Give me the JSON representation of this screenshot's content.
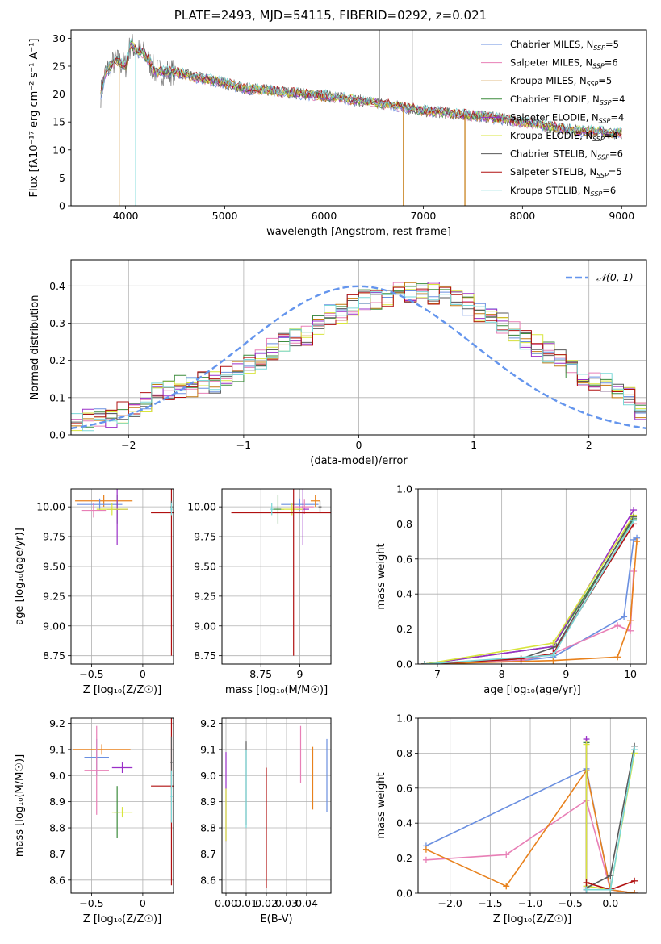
{
  "title": "PLATE=2493, MJD=54115, FIBERID=0292, z=0.021",
  "colors": {
    "chabrier_miles": "#6a8fe0",
    "salpeter_miles": "#e87fb6",
    "kroupa_miles": "#c47a10",
    "chabrier_elodie": "#3c8c3c",
    "salpeter_elodie": "#9a2fc8",
    "kroupa_elodie": "#d8e53c",
    "chabrier_stelib": "#5a5a5a",
    "salpeter_stelib": "#b01010",
    "kroupa_stelib": "#7ad8d8",
    "orange": "#e8811c",
    "gaussian": "#6495ed"
  },
  "chart_data": [
    {
      "id": "spectrum",
      "type": "line",
      "xlabel": "wavelength [Angstrom, rest frame]",
      "ylabel": "Flux [fλ10⁻¹⁷ erg cm⁻² s⁻¹ A⁻¹]",
      "xlim": [
        3450,
        9250
      ],
      "ylim": [
        0,
        31.5
      ],
      "xticks": [
        4000,
        5000,
        6000,
        7000,
        8000,
        9000
      ],
      "yticks": [
        0,
        5,
        10,
        15,
        20,
        25,
        30
      ],
      "legend_position": "top-right",
      "legend": [
        {
          "label": "Chabrier MILES, N",
          "sub": "SSP",
          "suffix": "=5",
          "color_key": "chabrier_miles"
        },
        {
          "label": "Salpeter MILES, N",
          "sub": "SSP",
          "suffix": "=6",
          "color_key": "salpeter_miles"
        },
        {
          "label": "Kroupa MILES, N",
          "sub": "SSP",
          "suffix": "=5",
          "color_key": "kroupa_miles"
        },
        {
          "label": "Chabrier ELODIE, N",
          "sub": "SSP",
          "suffix": "=4",
          "color_key": "chabrier_elodie"
        },
        {
          "label": "Salpeter ELODIE, N",
          "sub": "SSP",
          "suffix": "=4",
          "color_key": "salpeter_elodie"
        },
        {
          "label": "Kroupa ELODIE, N",
          "sub": "SSP",
          "suffix": "=4",
          "color_key": "kroupa_elodie"
        },
        {
          "label": "Chabrier STELIB, N",
          "sub": "SSP",
          "suffix": "=6",
          "color_key": "chabrier_stelib"
        },
        {
          "label": "Salpeter STELIB, N",
          "sub": "SSP",
          "suffix": "=5",
          "color_key": "salpeter_stelib"
        },
        {
          "label": "Kroupa STELIB, N",
          "sub": "SSP",
          "suffix": "=6",
          "color_key": "kroupa_stelib"
        }
      ],
      "continuum_x": [
        3750,
        3800,
        3900,
        4000,
        4050,
        4100,
        4200,
        4300,
        4400,
        4500,
        4700,
        5000,
        5200,
        5500,
        5800,
        6100,
        6300,
        6500,
        6700,
        7000,
        7300,
        7600,
        8000,
        8500,
        9000
      ],
      "continuum_y": [
        20,
        24,
        26,
        25,
        29,
        28,
        27,
        24,
        24,
        24,
        23,
        22,
        21,
        20.5,
        20,
        19.5,
        19,
        18.5,
        18,
        17,
        16.5,
        16,
        15,
        13.5,
        13
      ],
      "dips": [
        {
          "x": 3935,
          "y": 0,
          "color_key": "kroupa_miles"
        },
        {
          "x": 4102,
          "y": 0,
          "color_key": "kroupa_stelib"
        },
        {
          "x": 6800,
          "y": 0,
          "color_key": "kroupa_miles"
        },
        {
          "x": 7420,
          "y": 0,
          "color_key": "kroupa_miles"
        }
      ],
      "spikes": [
        {
          "x": 6560,
          "y": 31.5
        },
        {
          "x": 6890,
          "y": 31.5
        }
      ]
    },
    {
      "id": "residuals",
      "type": "area",
      "xlabel": "(data-model)/error",
      "ylabel": "Normed distribution",
      "xlim": [
        -2.5,
        2.5
      ],
      "ylim": [
        0,
        0.47
      ],
      "xticks": [
        -2,
        -1,
        0,
        1,
        2
      ],
      "yticks": [
        0.0,
        0.1,
        0.2,
        0.3,
        0.4
      ],
      "grid": true,
      "legend_position": "top-right",
      "legend_label": "𝒩(0, 1)",
      "bin_width": 0.1,
      "bin_start": -2.5,
      "reference_hist": [
        0.04,
        0.04,
        0.05,
        0.05,
        0.06,
        0.07,
        0.09,
        0.11,
        0.12,
        0.13,
        0.13,
        0.14,
        0.14,
        0.16,
        0.17,
        0.19,
        0.2,
        0.23,
        0.25,
        0.26,
        0.27,
        0.29,
        0.32,
        0.33,
        0.35,
        0.36,
        0.36,
        0.37,
        0.38,
        0.38,
        0.38,
        0.38,
        0.37,
        0.36,
        0.35,
        0.33,
        0.32,
        0.3,
        0.28,
        0.26,
        0.24,
        0.22,
        0.2,
        0.18,
        0.16,
        0.15,
        0.14,
        0.12,
        0.1,
        0.07
      ],
      "series_count": 9
    },
    {
      "id": "age_vs_Z",
      "type": "scatter",
      "xlabel": "Z [log₁₀(Z/Z☉)]",
      "ylabel": "age  [log₁₀(age/yr)]",
      "xlim": [
        -0.7,
        0.3
      ],
      "ylim": [
        8.68,
        10.15
      ],
      "xticks": [
        -0.5,
        0.0
      ],
      "yticks": [
        8.75,
        9.0,
        9.25,
        9.5,
        9.75,
        10.0
      ],
      "grid": true,
      "points": [
        {
          "x": -0.38,
          "y": 10.05,
          "xerr": 0.28,
          "yerr": 0.05,
          "color_key": "orange"
        },
        {
          "x": -0.42,
          "y": 10.02,
          "xerr": 0.22,
          "yerr": 0.05,
          "color_key": "chabrier_miles"
        },
        {
          "x": -0.48,
          "y": 9.97,
          "xerr": 0.12,
          "yerr": 0.06,
          "color_key": "salpeter_miles"
        },
        {
          "x": -0.25,
          "y": 9.98,
          "xerr": 0.03,
          "yerr": 0.12,
          "color_key": "chabrier_elodie"
        },
        {
          "x": -0.25,
          "y": 9.98,
          "xerr": 0.1,
          "yerr": 0.3,
          "color_key": "salpeter_elodie"
        },
        {
          "x": -0.3,
          "y": 9.98,
          "xerr": 0.15,
          "yerr": 0.05,
          "color_key": "kroupa_elodie"
        },
        {
          "x": 0.28,
          "y": 9.95,
          "xerr": 0.2,
          "yerr": 1.2,
          "color_key": "salpeter_stelib"
        },
        {
          "x": 0.28,
          "y": 10.0,
          "xerr": 0.01,
          "yerr": 0.05,
          "color_key": "chabrier_stelib"
        },
        {
          "x": 0.28,
          "y": 9.98,
          "xerr": 0.01,
          "yerr": 0.05,
          "color_key": "kroupa_stelib"
        }
      ]
    },
    {
      "id": "age_vs_mass",
      "type": "scatter",
      "xlabel": "mass [log₁₀(M/M☉)]",
      "ylabel": "",
      "xlim": [
        8.5,
        9.2
      ],
      "ylim": [
        8.68,
        10.15
      ],
      "xticks": [
        8.75,
        9.0
      ],
      "yticks": [
        8.75,
        9.0,
        9.25,
        9.5,
        9.75,
        10.0
      ],
      "grid": true,
      "points": [
        {
          "x": 9.0,
          "y": 10.02,
          "xerr": 0.12,
          "yerr": 0.05,
          "color_key": "chabrier_miles"
        },
        {
          "x": 9.03,
          "y": 10.0,
          "xerr": 0.06,
          "yerr": 0.06,
          "color_key": "salpeter_miles"
        },
        {
          "x": 9.1,
          "y": 10.05,
          "xerr": 0.03,
          "yerr": 0.05,
          "color_key": "orange"
        },
        {
          "x": 8.86,
          "y": 9.98,
          "xerr": 0.04,
          "yerr": 0.12,
          "color_key": "chabrier_elodie"
        },
        {
          "x": 9.02,
          "y": 9.98,
          "xerr": 0.04,
          "yerr": 0.3,
          "color_key": "salpeter_elodie"
        },
        {
          "x": 8.95,
          "y": 9.98,
          "xerr": 0.07,
          "yerr": 0.05,
          "color_key": "kroupa_elodie"
        },
        {
          "x": 8.96,
          "y": 9.95,
          "xerr": 0.4,
          "yerr": 1.2,
          "color_key": "salpeter_stelib"
        },
        {
          "x": 9.13,
          "y": 10.0,
          "xerr": 0.01,
          "yerr": 0.05,
          "color_key": "chabrier_stelib"
        },
        {
          "x": 8.82,
          "y": 9.98,
          "xerr": 0.01,
          "yerr": 0.05,
          "color_key": "kroupa_stelib"
        }
      ]
    },
    {
      "id": "weight_vs_age",
      "type": "line",
      "xlabel": "age  [log₁₀(age/yr)]",
      "ylabel": "mass weight",
      "xlim": [
        6.7,
        10.25
      ],
      "ylim": [
        0,
        1.0
      ],
      "xticks": [
        7,
        8,
        9,
        10
      ],
      "yticks": [
        0.0,
        0.2,
        0.4,
        0.6,
        0.8,
        1.0
      ],
      "grid": true,
      "series": [
        {
          "color_key": "chabrier_miles",
          "x": [
            6.8,
            8.3,
            8.8,
            9.9,
            10.05,
            10.1
          ],
          "y": [
            0.0,
            0.02,
            0.04,
            0.27,
            0.71,
            0.72
          ]
        },
        {
          "color_key": "salpeter_miles",
          "x": [
            6.8,
            8.3,
            8.8,
            9.8,
            10.0,
            10.05
          ],
          "y": [
            0.0,
            0.02,
            0.06,
            0.22,
            0.19,
            0.53
          ]
        },
        {
          "color_key": "orange",
          "x": [
            6.8,
            8.8,
            9.8,
            10.0,
            10.1
          ],
          "y": [
            0.0,
            0.02,
            0.04,
            0.25,
            0.7
          ]
        },
        {
          "color_key": "chabrier_elodie",
          "x": [
            6.8,
            8.8,
            10.05
          ],
          "y": [
            0.0,
            0.1,
            0.83
          ]
        },
        {
          "color_key": "salpeter_elodie",
          "x": [
            6.8,
            8.8,
            10.05
          ],
          "y": [
            0.0,
            0.1,
            0.88
          ]
        },
        {
          "color_key": "kroupa_elodie",
          "x": [
            6.8,
            8.8,
            10.05
          ],
          "y": [
            0.0,
            0.12,
            0.85
          ]
        },
        {
          "color_key": "chabrier_stelib",
          "x": [
            6.8,
            8.3,
            8.85,
            10.05
          ],
          "y": [
            0.0,
            0.03,
            0.1,
            0.84
          ]
        },
        {
          "color_key": "salpeter_stelib",
          "x": [
            6.8,
            8.3,
            8.8,
            10.05
          ],
          "y": [
            0.0,
            0.03,
            0.06,
            0.8
          ]
        },
        {
          "color_key": "kroupa_stelib",
          "x": [
            6.8,
            8.8,
            10.05
          ],
          "y": [
            0.0,
            0.05,
            0.82
          ]
        }
      ]
    },
    {
      "id": "mass_vs_Z",
      "type": "scatter",
      "xlabel": "Z [log₁₀(Z/Z☉)]",
      "ylabel": "mass [log₁₀(M/M☉)]",
      "xlim": [
        -0.7,
        0.3
      ],
      "ylim": [
        8.55,
        9.22
      ],
      "xticks": [
        -0.5,
        0.0
      ],
      "yticks": [
        8.6,
        8.7,
        8.8,
        8.9,
        9.0,
        9.1,
        9.2
      ],
      "grid": true,
      "points": [
        {
          "x": -0.4,
          "y": 9.1,
          "xerr": 0.28,
          "yerr": 0.02,
          "color_key": "orange"
        },
        {
          "x": -0.45,
          "y": 9.07,
          "xerr": 0.12,
          "yerr": 0.07,
          "color_key": "chabrier_miles"
        },
        {
          "x": -0.45,
          "y": 9.02,
          "xerr": 0.12,
          "yerr": 0.17,
          "color_key": "salpeter_miles"
        },
        {
          "x": -0.25,
          "y": 8.86,
          "xerr": 0.03,
          "yerr": 0.1,
          "color_key": "chabrier_elodie"
        },
        {
          "x": -0.2,
          "y": 9.03,
          "xerr": 0.1,
          "yerr": 0.02,
          "color_key": "salpeter_elodie"
        },
        {
          "x": -0.2,
          "y": 8.86,
          "xerr": 0.1,
          "yerr": 0.02,
          "color_key": "kroupa_elodie"
        },
        {
          "x": 0.28,
          "y": 8.96,
          "xerr": 0.2,
          "yerr": 0.38,
          "color_key": "salpeter_stelib"
        },
        {
          "x": 0.28,
          "y": 9.05,
          "xerr": 0.01,
          "yerr": 0.1,
          "color_key": "chabrier_stelib"
        },
        {
          "x": 0.28,
          "y": 8.92,
          "xerr": 0.01,
          "yerr": 0.1,
          "color_key": "kroupa_stelib"
        }
      ]
    },
    {
      "id": "mass_vs_EBV",
      "type": "scatter",
      "xlabel": "E(B-V)",
      "ylabel": "",
      "xlim": [
        -0.002,
        0.052
      ],
      "ylim": [
        8.55,
        9.22
      ],
      "xticks": [
        0.0,
        0.01,
        0.02,
        0.03,
        0.04
      ],
      "xtick_labels": [
        "0.00",
        "0.01",
        "0.02",
        "0.03",
        "0.04"
      ],
      "yticks": [
        8.6,
        8.7,
        8.8,
        8.9,
        9.0,
        9.1,
        9.2
      ],
      "grid": true,
      "points": [
        {
          "x": 0.0,
          "y": 8.92,
          "yerr": 0.17,
          "color_key": "salpeter_elodie"
        },
        {
          "x": 0.0,
          "y": 8.85,
          "yerr": 0.1,
          "color_key": "kroupa_elodie"
        },
        {
          "x": 0.01,
          "y": 8.97,
          "yerr": 0.16,
          "color_key": "chabrier_stelib"
        },
        {
          "x": 0.01,
          "y": 8.95,
          "yerr": 0.15,
          "color_key": "kroupa_stelib"
        },
        {
          "x": 0.02,
          "y": 8.8,
          "yerr": 0.23,
          "color_key": "salpeter_stelib"
        },
        {
          "x": 0.037,
          "y": 9.08,
          "yerr": 0.11,
          "color_key": "salpeter_miles"
        },
        {
          "x": 0.043,
          "y": 8.99,
          "yerr": 0.12,
          "color_key": "orange"
        },
        {
          "x": 0.05,
          "y": 9.0,
          "yerr": 0.14,
          "color_key": "chabrier_miles"
        }
      ]
    },
    {
      "id": "weight_vs_Z",
      "type": "line",
      "xlabel": "Z [log₁₀(Z/Z☉)]",
      "ylabel": "mass weight",
      "xlim": [
        -2.4,
        0.45
      ],
      "ylim": [
        0,
        1.0
      ],
      "xticks": [
        -2.0,
        -1.5,
        -1.0,
        -0.5,
        0.0
      ],
      "xtick_labels": [
        "−2.0",
        "−1.5",
        "−1.0",
        "−0.5",
        "0.0"
      ],
      "yticks": [
        0.0,
        0.2,
        0.4,
        0.6,
        0.8,
        1.0
      ],
      "grid": true,
      "series": [
        {
          "color_key": "chabrier_miles",
          "x": [
            -2.3,
            -0.3,
            0.0,
            0.3
          ],
          "y": [
            0.27,
            0.71,
            0.02,
            0.0
          ]
        },
        {
          "color_key": "salpeter_miles",
          "x": [
            -2.3,
            -1.3,
            -0.3,
            0.0,
            0.3
          ],
          "y": [
            0.19,
            0.22,
            0.53,
            0.02,
            0.0
          ]
        },
        {
          "color_key": "orange",
          "x": [
            -2.3,
            -1.3,
            -0.3,
            0.0,
            0.3
          ],
          "y": [
            0.25,
            0.04,
            0.7,
            0.02,
            0.0
          ]
        },
        {
          "color_key": "chabrier_elodie",
          "x": [
            -0.3,
            -0.3
          ],
          "y": [
            0.02,
            0.86
          ]
        },
        {
          "color_key": "salpeter_elodie",
          "x": [
            -0.3,
            -0.3
          ],
          "y": [
            0.02,
            0.88
          ]
        },
        {
          "color_key": "kroupa_elodie",
          "x": [
            -0.3,
            -0.3,
            0.0,
            0.3
          ],
          "y": [
            0.85,
            0.04,
            0.02,
            0.8
          ]
        },
        {
          "color_key": "chabrier_stelib",
          "x": [
            -0.3,
            0.0,
            0.3
          ],
          "y": [
            0.03,
            0.1,
            0.84
          ]
        },
        {
          "color_key": "salpeter_stelib",
          "x": [
            -0.3,
            0.0,
            0.3
          ],
          "y": [
            0.06,
            0.02,
            0.07
          ]
        },
        {
          "color_key": "kroupa_stelib",
          "x": [
            -0.3,
            0.0,
            0.3
          ],
          "y": [
            0.02,
            0.02,
            0.82
          ]
        }
      ]
    }
  ]
}
